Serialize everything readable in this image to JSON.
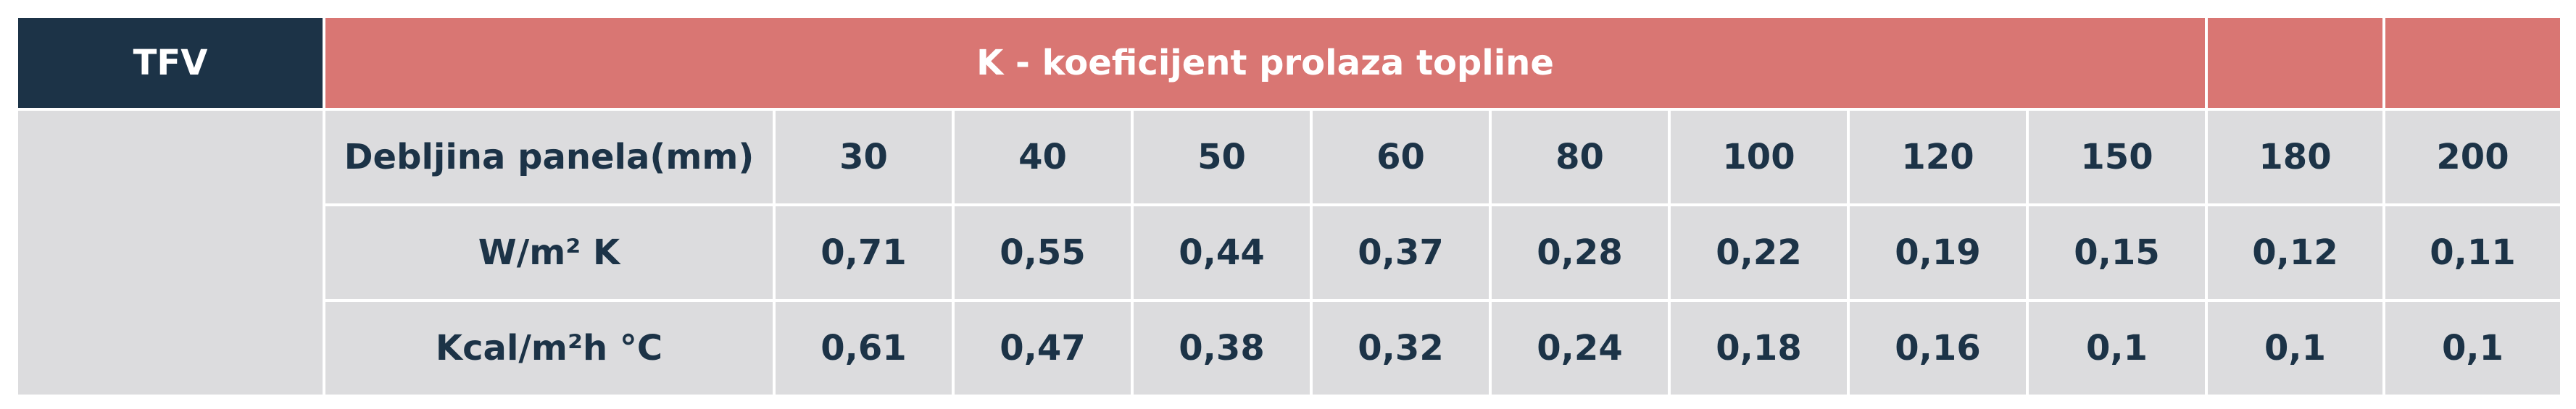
{
  "header": {
    "tfv": "TFV",
    "title": "K - koeficijent prolaza topline"
  },
  "table": {
    "rows": [
      [
        "Debljina panela(mm)",
        "30",
        "40",
        "50",
        "60",
        "80",
        "100",
        "120",
        "150",
        "180",
        "200"
      ],
      [
        "W/m² K",
        "0,71",
        "0,55",
        "0,44",
        "0,37",
        "0,28",
        "0,22",
        "0,19",
        "0,15",
        "0,12",
        "0,11"
      ],
      [
        "Kcal/m²h °C",
        "0,61",
        "0,47",
        "0,38",
        "0,32",
        "0,24",
        "0,18",
        "0,16",
        "0,1",
        "0,1",
        "0,1"
      ]
    ]
  }
}
